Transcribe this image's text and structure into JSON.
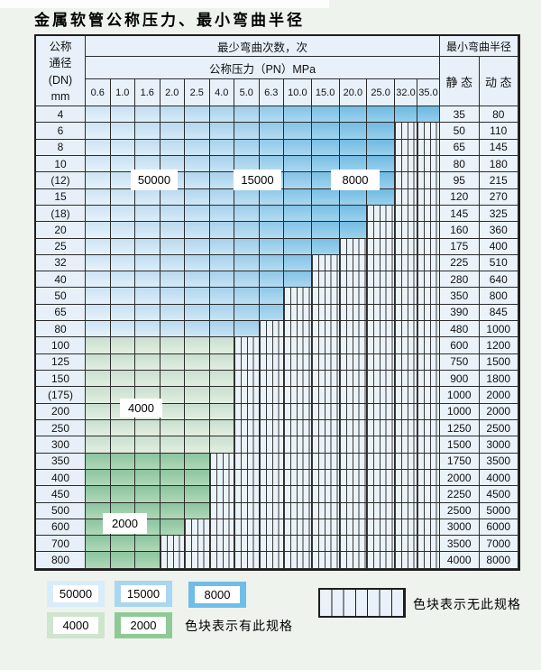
{
  "title": "金属软管公称压力、最小弯曲半径",
  "table": {
    "dn_header_lines": [
      "公称",
      "通径",
      "(DN)",
      "mm"
    ],
    "bend_header": "最少弯曲次数，次",
    "pressure_header": "公称压力（PN）MPa",
    "radius_header": "最小弯曲半径",
    "static_header": "静 态",
    "dynamic_header": "动 态",
    "pressure_columns": [
      "0.6",
      "1.0",
      "1.6",
      "2.0",
      "2.5",
      "4.0",
      "5.0",
      "6.3",
      "10.0",
      "15.0",
      "20.0",
      "25.0",
      "32.0",
      "35.0"
    ],
    "rows": [
      {
        "dn": "4",
        "colored": 14,
        "zone": "b",
        "static": "35",
        "dynamic": "80"
      },
      {
        "dn": "6",
        "colored": 12,
        "zone": "b",
        "static": "50",
        "dynamic": "110"
      },
      {
        "dn": "8",
        "colored": 12,
        "zone": "b",
        "static": "65",
        "dynamic": "145"
      },
      {
        "dn": "10",
        "colored": 12,
        "zone": "b",
        "static": "80",
        "dynamic": "180"
      },
      {
        "dn": "(12)",
        "colored": 12,
        "zone": "b",
        "static": "95",
        "dynamic": "215"
      },
      {
        "dn": "15",
        "colored": 12,
        "zone": "b",
        "static": "120",
        "dynamic": "270"
      },
      {
        "dn": "(18)",
        "colored": 11,
        "zone": "b",
        "static": "145",
        "dynamic": "325"
      },
      {
        "dn": "20",
        "colored": 11,
        "zone": "b",
        "static": "160",
        "dynamic": "360"
      },
      {
        "dn": "25",
        "colored": 10,
        "zone": "b",
        "static": "175",
        "dynamic": "400"
      },
      {
        "dn": "32",
        "colored": 9,
        "zone": "b",
        "static": "225",
        "dynamic": "510"
      },
      {
        "dn": "40",
        "colored": 9,
        "zone": "b",
        "static": "280",
        "dynamic": "640"
      },
      {
        "dn": "50",
        "colored": 8,
        "zone": "b",
        "static": "350",
        "dynamic": "800"
      },
      {
        "dn": "65",
        "colored": 8,
        "zone": "b",
        "static": "390",
        "dynamic": "845"
      },
      {
        "dn": "80",
        "colored": 7,
        "zone": "b",
        "static": "480",
        "dynamic": "1000"
      },
      {
        "dn": "100",
        "colored": 6,
        "zone": "gl",
        "static": "600",
        "dynamic": "1200"
      },
      {
        "dn": "125",
        "colored": 6,
        "zone": "gl",
        "static": "750",
        "dynamic": "1500"
      },
      {
        "dn": "150",
        "colored": 6,
        "zone": "gl",
        "static": "900",
        "dynamic": "1800"
      },
      {
        "dn": "(175)",
        "colored": 6,
        "zone": "gl",
        "static": "1000",
        "dynamic": "2000"
      },
      {
        "dn": "200",
        "colored": 6,
        "zone": "gl",
        "static": "1000",
        "dynamic": "2000"
      },
      {
        "dn": "250",
        "colored": 6,
        "zone": "gl",
        "static": "1250",
        "dynamic": "2500"
      },
      {
        "dn": "300",
        "colored": 6,
        "zone": "gl",
        "static": "1500",
        "dynamic": "3000"
      },
      {
        "dn": "350",
        "colored": 5,
        "zone": "gd",
        "static": "1750",
        "dynamic": "3500"
      },
      {
        "dn": "400",
        "colored": 5,
        "zone": "gd",
        "static": "2000",
        "dynamic": "4000"
      },
      {
        "dn": "450",
        "colored": 5,
        "zone": "gd",
        "static": "2250",
        "dynamic": "4500"
      },
      {
        "dn": "500",
        "colored": 5,
        "zone": "gd",
        "static": "2500",
        "dynamic": "5000"
      },
      {
        "dn": "600",
        "colored": 4,
        "zone": "gd",
        "static": "3000",
        "dynamic": "6000"
      },
      {
        "dn": "700",
        "colored": 3,
        "zone": "gd",
        "static": "3500",
        "dynamic": "7000"
      },
      {
        "dn": "800",
        "colored": 3,
        "zone": "gd",
        "static": "4000",
        "dynamic": "8000"
      }
    ]
  },
  "overlays": [
    {
      "text": "50000"
    },
    {
      "text": "15000"
    },
    {
      "text": "8000"
    },
    {
      "text": "4000"
    },
    {
      "text": "2000"
    }
  ],
  "legend": {
    "items": [
      {
        "label": "50000",
        "color": "#d9ecf9"
      },
      {
        "label": "15000",
        "color": "#a9d6f0"
      },
      {
        "label": "8000",
        "color": "#6fbde8"
      },
      {
        "label": "4000",
        "color": "#cfe5cd"
      },
      {
        "label": "2000",
        "color": "#8fca96"
      }
    ],
    "has_spec_caption": "色块表示有此规格",
    "no_spec_caption": "色块表示无此规格"
  },
  "colors": {
    "blue_columns": [
      "#ddeefa",
      "#d6ebf9",
      "#cfe7f7",
      "#c7e3f5",
      "#bedff4",
      "#b3daf2",
      "#a7d5ef",
      "#9ad0ed",
      "#8ccaeb",
      "#80c5e9",
      "#79c2e7",
      "#75c0e6",
      "#72bfe6",
      "#70bee5"
    ],
    "green_light": "#d8e9d4",
    "green_dark": "#94cb9e",
    "hatch_bg": "#ebf3fa"
  }
}
